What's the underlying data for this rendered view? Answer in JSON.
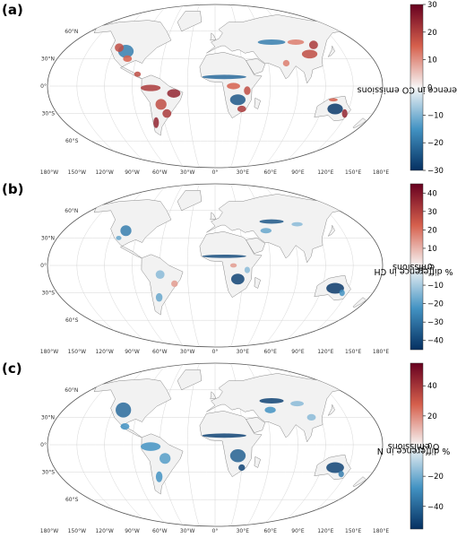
{
  "panels": [
    {
      "label": "(a)",
      "colorbar": {
        "label_pre": "% difference in CO emissions",
        "label_sub": "",
        "label_post": "",
        "ticks": [
          "30",
          "20",
          "10",
          "0",
          "−10",
          "−20",
          "−30"
        ],
        "min": -30,
        "max": 30
      }
    },
    {
      "label": "(b)",
      "colorbar": {
        "label_pre": "% difference in CH",
        "label_sub": "4",
        "label_post": " emissions",
        "ticks": [
          "40",
          "30",
          "20",
          "10",
          "0",
          "−10",
          "−20",
          "−30",
          "−40"
        ],
        "min": -45,
        "max": 45
      }
    },
    {
      "label": "(c)",
      "colorbar": {
        "label_pre": "% difference in N",
        "label_sub": "2",
        "label_post": "O emissions",
        "ticks": [
          "40",
          "20",
          "0",
          "−20",
          "−40"
        ],
        "min": -55,
        "max": 55
      }
    }
  ],
  "lat_labels": [
    "60°N",
    "30°N",
    "0°",
    "30°S",
    "60°S"
  ],
  "lon_labels": [
    "180°W",
    "150°W",
    "120°W",
    "90°W",
    "60°W",
    "30°W",
    "0°",
    "30°E",
    "60°E",
    "90°E",
    "120°E",
    "150°E",
    "180°E"
  ],
  "colors": {
    "positive_max": "#67001f",
    "positive_mid": "#d6604d",
    "neutral": "#f7f7f7",
    "negative_mid": "#4393c3",
    "negative_max": "#053061"
  }
}
